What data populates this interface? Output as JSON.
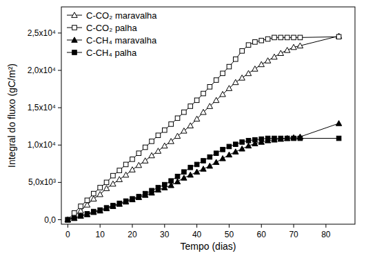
{
  "chart_data": {
    "type": "line",
    "x_label": "Tempo (dias)",
    "y_label": "Integral do fluxo (gC/m²)",
    "x": [
      0,
      2,
      4,
      6,
      8,
      10,
      12,
      14,
      16,
      18,
      20,
      22,
      24,
      26,
      28,
      30,
      32,
      34,
      36,
      38,
      40,
      42,
      44,
      46,
      48,
      50,
      52,
      54,
      56,
      58,
      60,
      62,
      64,
      66,
      68,
      70,
      72,
      84
    ],
    "series": [
      {
        "name": "C-CO₂ maravalha",
        "color": "#000000",
        "marker": "triangle-open",
        "line_style": "solid",
        "values": [
          0,
          500,
          1200,
          2000,
          2800,
          3400,
          4200,
          4800,
          5400,
          6000,
          6700,
          7300,
          7900,
          8600,
          9200,
          9900,
          10500,
          11200,
          11900,
          12600,
          13500,
          14400,
          15200,
          16000,
          16800,
          17600,
          18400,
          19000,
          19600,
          20200,
          20800,
          21300,
          21800,
          22300,
          22700,
          23100,
          23300,
          24600
        ]
      },
      {
        "name": "C-CO₂ palha",
        "color": "#000000",
        "marker": "square-open",
        "line_style": "solid",
        "values": [
          0,
          900,
          1800,
          2600,
          3500,
          4300,
          5000,
          5900,
          6600,
          7400,
          8100,
          8900,
          9700,
          10500,
          11300,
          12000,
          12800,
          13600,
          14400,
          15200,
          16000,
          16900,
          17800,
          18700,
          19600,
          20500,
          21500,
          22600,
          23400,
          23800,
          24000,
          24200,
          24400,
          24400,
          24400,
          24400,
          24400,
          24500
        ]
      },
      {
        "name": "C-CH₄ maravalha",
        "color": "#000000",
        "marker": "triangle",
        "line_style": "solid",
        "values": [
          0,
          200,
          500,
          700,
          1000,
          1200,
          1500,
          1800,
          2100,
          2400,
          2700,
          3000,
          3300,
          3600,
          4000,
          4300,
          4600,
          5100,
          5600,
          6000,
          6400,
          6800,
          7200,
          7700,
          8200,
          8700,
          9100,
          9500,
          9900,
          10200,
          10400,
          10600,
          10700,
          10800,
          10900,
          11000,
          11100,
          12900
        ]
      },
      {
        "name": "C-CH₄ palha",
        "color": "#000000",
        "marker": "square",
        "line_style": "solid",
        "values": [
          0,
          200,
          500,
          800,
          1100,
          1300,
          1600,
          1900,
          2200,
          2500,
          2800,
          3100,
          3500,
          3900,
          4300,
          4700,
          5200,
          5800,
          6400,
          7000,
          7400,
          7900,
          8400,
          8900,
          9400,
          9800,
          10100,
          10400,
          10600,
          10700,
          10800,
          10900,
          10900,
          10900,
          10900,
          10900,
          10900,
          10900
        ]
      }
    ],
    "xlim": [
      -2,
      89
    ],
    "ylim": [
      -600,
      28500
    ],
    "xticks": [
      0,
      10,
      20,
      30,
      40,
      50,
      60,
      70,
      80
    ],
    "yticks": [
      {
        "value": 0,
        "label": "0,0"
      },
      {
        "value": 5000,
        "label": "5,0x10³"
      },
      {
        "value": 10000,
        "label": "1,0x10⁴"
      },
      {
        "value": 15000,
        "label": "1,5x10⁴"
      },
      {
        "value": 20000,
        "label": "2,0x10⁴"
      },
      {
        "value": 25000,
        "label": "2,5x10⁴"
      }
    ],
    "grid": false,
    "legend": "top-left"
  }
}
